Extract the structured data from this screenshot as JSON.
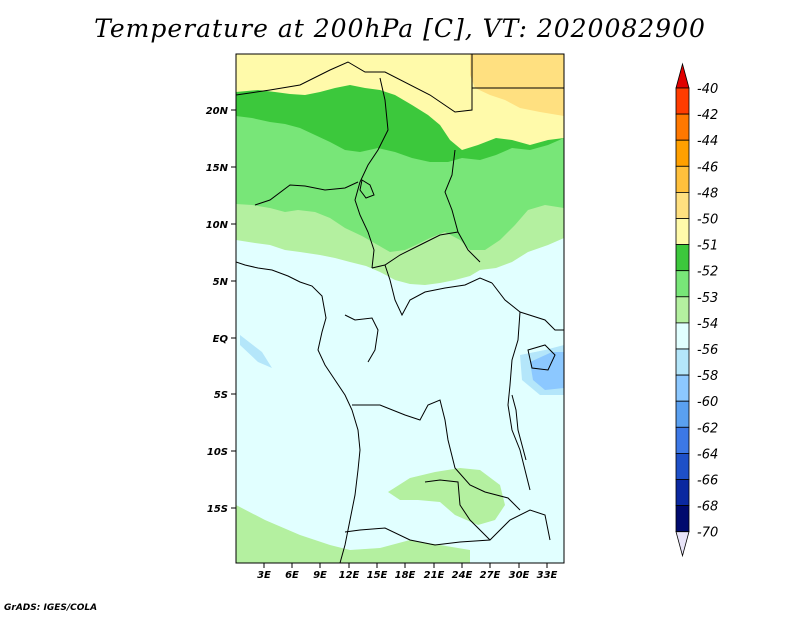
{
  "title": "Temperature at 200hPa [C], VT: 2020082900",
  "credit": "GrADS: IGES/COLA",
  "map": {
    "lat_labels": [
      "20N",
      "15N",
      "10N",
      "5N",
      "EQ",
      "5S",
      "10S",
      "15S"
    ],
    "lon_labels": [
      "3E",
      "6E",
      "9E",
      "12E",
      "15E",
      "18E",
      "21E",
      "24E",
      "27E",
      "30E",
      "33E"
    ]
  },
  "colorbar": {
    "labels": [
      "-40",
      "-42",
      "-44",
      "-46",
      "-48",
      "-50",
      "-51",
      "-52",
      "-53",
      "-54",
      "-56",
      "-58",
      "-60",
      "-62",
      "-64",
      "-66",
      "-68",
      "-70"
    ],
    "colors": [
      "#e00000",
      "#ff3c00",
      "#ff7800",
      "#ffa000",
      "#ffc03c",
      "#ffe080",
      "#fffaaa",
      "#3cc83c",
      "#78e678",
      "#b4f0a0",
      "#e1ffff",
      "#b4e6fa",
      "#8cc8ff",
      "#5aa0f0",
      "#3c78e6",
      "#1e50c8",
      "#0a28a0",
      "#000a6e",
      "#e8e4f8"
    ]
  }
}
